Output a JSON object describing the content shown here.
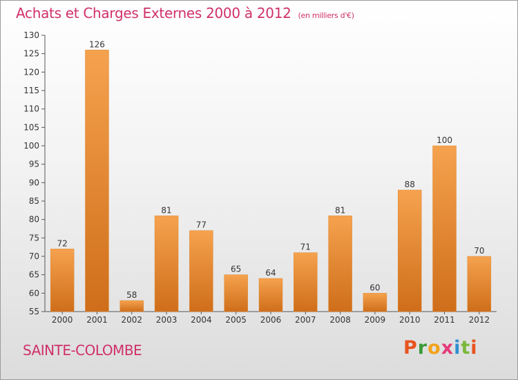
{
  "header": {
    "title": "Achats et Charges Externes 2000 à 2012",
    "unit": "(en milliers d'€)"
  },
  "footer": {
    "commune": "SAINTE-COLOMBE",
    "brand_letters": [
      "P",
      "r",
      "o",
      "x",
      "i",
      "t",
      "i"
    ],
    "brand_colors": [
      "#e8531f",
      "#3a9a3a",
      "#f2a21a",
      "#e43b7a",
      "#2f8fd0",
      "#7ab83a",
      "#e8531f"
    ]
  },
  "colors": {
    "title": "#d0306a",
    "bar_light": "#f5a24e",
    "bar_dark": "#d1721d",
    "axis": "#555555",
    "text": "#333333"
  },
  "chart_data": {
    "type": "bar",
    "categories": [
      "2000",
      "2001",
      "2002",
      "2003",
      "2004",
      "2005",
      "2006",
      "2007",
      "2008",
      "2009",
      "2010",
      "2011",
      "2012"
    ],
    "values": [
      72,
      126,
      58,
      81,
      77,
      65,
      64,
      71,
      81,
      60,
      88,
      100,
      70
    ],
    "ylim": [
      55,
      130
    ],
    "yticks": [
      55,
      60,
      65,
      70,
      75,
      80,
      85,
      90,
      95,
      100,
      105,
      110,
      115,
      120,
      125,
      130
    ],
    "title": "Achats et Charges Externes 2000 à 2012",
    "xlabel": "",
    "ylabel": "",
    "grid": false
  }
}
